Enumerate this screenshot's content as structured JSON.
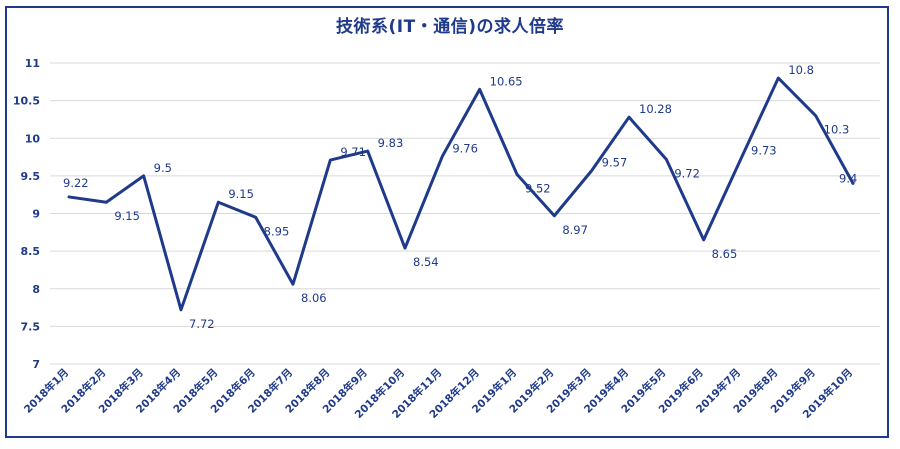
{
  "chart_data": {
    "type": "line",
    "title": "技術系(IT・通信)の求人倍率",
    "xlabel": "",
    "ylabel": "",
    "ylim": [
      7,
      11
    ],
    "yticks": [
      "7",
      "7.5",
      "8",
      "8.5",
      "9",
      "9.5",
      "10",
      "10.5",
      "11"
    ],
    "grid": true,
    "legend": "none",
    "categories": [
      "2018年1月",
      "2018年2月",
      "2018年3月",
      "2018年4月",
      "2018年5月",
      "2018年6月",
      "2018年7月",
      "2018年8月",
      "2018年9月",
      "2018年10月",
      "2018年11月",
      "2018年12月",
      "2019年1月",
      "2019年2月",
      "2019年3月",
      "2019年4月",
      "2019年5月",
      "2019年6月",
      "2019年7月",
      "2019年8月",
      "2019年9月",
      "2019年10月"
    ],
    "series": [
      {
        "values": [
          9.22,
          9.15,
          9.5,
          7.72,
          9.15,
          8.95,
          8.06,
          9.71,
          9.83,
          8.54,
          9.76,
          10.65,
          9.52,
          8.97,
          9.57,
          10.28,
          9.72,
          8.65,
          9.73,
          10.8,
          10.3,
          9.4
        ],
        "labels": [
          "9.22",
          "9.15",
          "9.5",
          "7.72",
          "9.15",
          "8.95",
          "8.06",
          "9.71",
          "9.83",
          "8.54",
          "9.76",
          "10.65",
          "9.52",
          "8.97",
          "9.57",
          "10.28",
          "9.72",
          "8.65",
          "9.73",
          "10.8",
          "10.3",
          "9.4"
        ]
      }
    ],
    "colors": {
      "line": "#1f3a8a",
      "text": "#1f3a8a",
      "grid": "#d9d9d9",
      "frame": "#1f3a8a"
    }
  }
}
